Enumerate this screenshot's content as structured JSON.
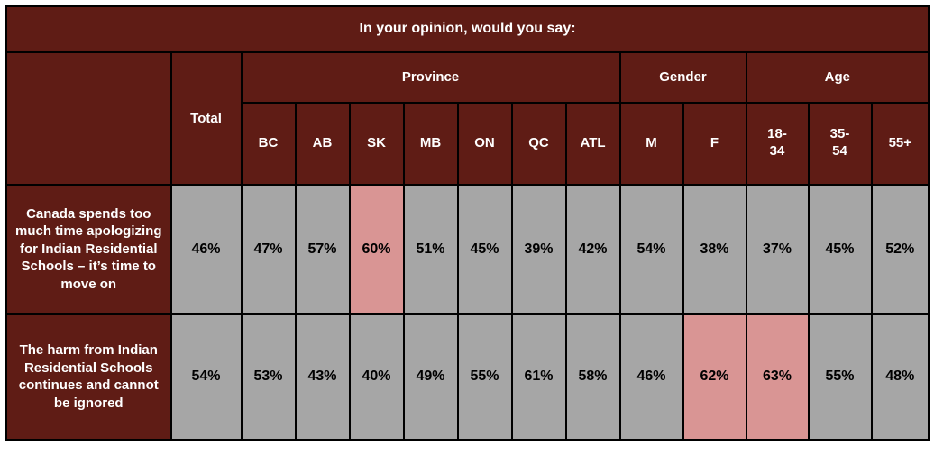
{
  "table": {
    "title": "In your opinion, would you say:",
    "corner_label": "",
    "total_header": "Total",
    "groups": [
      {
        "label": "Province"
      },
      {
        "label": "Gender"
      },
      {
        "label": "Age"
      }
    ],
    "sub_headers": [
      "BC",
      "AB",
      "SK",
      "MB",
      "ON",
      "QC",
      "ATL",
      "M",
      "F",
      "18-\n34",
      "35-\n54",
      "55+"
    ],
    "rows": [
      {
        "label": "Canada spends too much time apologizing for Indian Residential Schools – it’s time to move on",
        "values": [
          "46%",
          "47%",
          "57%",
          "60%",
          "51%",
          "45%",
          "39%",
          "42%",
          "54%",
          "38%",
          "37%",
          "45%",
          "52%"
        ]
      },
      {
        "label": "The harm from Indian Residential Schools continues and cannot be ignored",
        "values": [
          "54%",
          "53%",
          "43%",
          "40%",
          "49%",
          "55%",
          "61%",
          "58%",
          "46%",
          "62%",
          "63%",
          "55%",
          "48%"
        ]
      }
    ],
    "colors": {
      "header_maroon": "#5f1c15",
      "cell_gray": "#a6a6a6",
      "highlight_pink": "#d99594",
      "border_black": "#000000",
      "header_text": "#ffffff",
      "data_text": "#000000"
    }
  },
  "chart_data": {
    "type": "table",
    "title": "In your opinion, would you say:",
    "column_groups": [
      {
        "label": "",
        "columns": [
          "Total"
        ]
      },
      {
        "label": "Province",
        "columns": [
          "BC",
          "AB",
          "SK",
          "MB",
          "ON",
          "QC",
          "ATL"
        ]
      },
      {
        "label": "Gender",
        "columns": [
          "M",
          "F"
        ]
      },
      {
        "label": "Age",
        "columns": [
          "18-34",
          "35-54",
          "55+"
        ]
      }
    ],
    "columns": [
      "Total",
      "BC",
      "AB",
      "SK",
      "MB",
      "ON",
      "QC",
      "ATL",
      "M",
      "F",
      "18-34",
      "35-54",
      "55+"
    ],
    "rows": [
      {
        "label": "Canada spends too much time apologizing for Indian Residential Schools – it’s time to move on",
        "values_pct": [
          46,
          47,
          57,
          60,
          51,
          45,
          39,
          42,
          54,
          38,
          37,
          45,
          52
        ],
        "highlighted_columns": [
          "SK"
        ]
      },
      {
        "label": "The harm from Indian Residential Schools continues and cannot be ignored",
        "values_pct": [
          54,
          53,
          43,
          40,
          49,
          55,
          61,
          58,
          46,
          62,
          63,
          55,
          48
        ],
        "highlighted_columns": [
          "F",
          "18-34"
        ]
      }
    ]
  }
}
